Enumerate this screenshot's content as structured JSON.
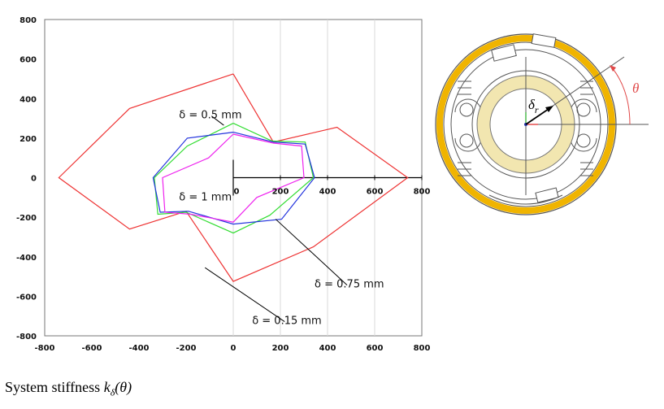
{
  "chart_data": {
    "type": "line",
    "subtype": "polar-outline",
    "xlim": [
      -800,
      800
    ],
    "ylim": [
      -800,
      800
    ],
    "xticks": [
      "-800",
      "-600",
      "-400",
      "-200",
      "0",
      "200",
      "400",
      "600",
      "800"
    ],
    "yticks": [
      "800",
      "600",
      "400",
      "200",
      "0",
      "-200",
      "-400",
      "-600",
      "-800"
    ],
    "inner_axis_ticks": [
      "0",
      "200",
      "400",
      "600",
      "800"
    ],
    "grid": "vertical",
    "series": [
      {
        "name": "δ = 0.15 mm",
        "color": "#ee3333",
        "points": [
          [
            0,
            525
          ],
          [
            -440,
            350
          ],
          [
            -740,
            0
          ],
          [
            -440,
            -260
          ],
          [
            -200,
            -170
          ],
          [
            0,
            -525
          ],
          [
            340,
            -350
          ],
          [
            740,
            0
          ],
          [
            440,
            255
          ],
          [
            170,
            180
          ],
          [
            0,
            525
          ]
        ]
      },
      {
        "name": "δ = 0.5 mm",
        "color": "#33dd33",
        "points": [
          [
            0,
            275
          ],
          [
            -195,
            160
          ],
          [
            -335,
            0
          ],
          [
            -320,
            -185
          ],
          [
            -200,
            -175
          ],
          [
            0,
            -280
          ],
          [
            155,
            -190
          ],
          [
            340,
            0
          ],
          [
            305,
            180
          ],
          [
            165,
            185
          ],
          [
            0,
            275
          ]
        ]
      },
      {
        "name": "δ = 0.75 mm",
        "color": "#2233dd",
        "points": [
          [
            0,
            230
          ],
          [
            -195,
            200
          ],
          [
            -340,
            0
          ],
          [
            -310,
            -175
          ],
          [
            -190,
            -170
          ],
          [
            0,
            -235
          ],
          [
            205,
            -210
          ],
          [
            345,
            0
          ],
          [
            305,
            170
          ],
          [
            170,
            180
          ],
          [
            0,
            230
          ]
        ]
      },
      {
        "name": "δ = 1 mm",
        "color": "#ee22ee",
        "points": [
          [
            0,
            220
          ],
          [
            -105,
            100
          ],
          [
            -300,
            0
          ],
          [
            -290,
            -175
          ],
          [
            -180,
            -185
          ],
          [
            0,
            -225
          ],
          [
            100,
            -100
          ],
          [
            300,
            0
          ],
          [
            290,
            160
          ],
          [
            170,
            175
          ],
          [
            0,
            220
          ]
        ]
      }
    ],
    "annotations": [
      {
        "text": "δ = 0.5 mm",
        "at": [
          -230,
          320
        ],
        "pointer_to": [
          -40,
          265
        ]
      },
      {
        "text": "δ = 1 mm",
        "at": [
          -230,
          -95
        ]
      },
      {
        "text": "δ = 0.75 mm",
        "at": [
          345,
          -535
        ],
        "pointer_to": [
          180,
          -210
        ]
      },
      {
        "text": "δ = 0.15 mm",
        "at": [
          80,
          -720
        ],
        "pointer_to": [
          -120,
          -455
        ]
      }
    ]
  },
  "diagram": {
    "delta_label": "δ",
    "delta_sub": "r",
    "theta_label": "θ",
    "colors": {
      "outer_ring": "#f0b400",
      "inner_ring": "#f2e6b0",
      "theta": "#e04848"
    }
  },
  "caption": {
    "text": "System stiffness ",
    "k": "k",
    "sub": "δ",
    "arg": "(θ)"
  }
}
